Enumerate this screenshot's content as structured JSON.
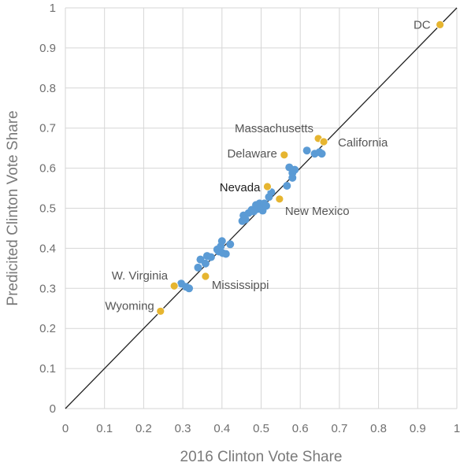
{
  "chart_data": {
    "type": "scatter",
    "xlabel": "2016 Clinton Vote Share",
    "ylabel": "Predicited Clinton Vote Share",
    "xlim": [
      0,
      1
    ],
    "ylim": [
      0,
      1
    ],
    "x_ticks": [
      "0",
      "0.1",
      "0.2",
      "0.3",
      "0.4",
      "0.5",
      "0.6",
      "0.7",
      "0.8",
      "0.9",
      "1"
    ],
    "y_ticks": [
      "0",
      "0.1",
      "0.2",
      "0.3",
      "0.4",
      "0.5",
      "0.6",
      "0.7",
      "0.8",
      "0.9",
      "1"
    ],
    "grid": true,
    "reference_line": {
      "from": [
        0,
        0
      ],
      "to": [
        1,
        1
      ]
    },
    "colors": {
      "states": "#5b9bd5",
      "highlighted": "#e6b530",
      "line": "#222222",
      "grid": "#d6d6d6"
    },
    "series": [
      {
        "points": [
          [
            0.296,
            0.312
          ],
          [
            0.308,
            0.304
          ],
          [
            0.316,
            0.3
          ],
          [
            0.339,
            0.352
          ],
          [
            0.345,
            0.372
          ],
          [
            0.358,
            0.362
          ],
          [
            0.362,
            0.381
          ],
          [
            0.372,
            0.378
          ],
          [
            0.388,
            0.397
          ],
          [
            0.392,
            0.392
          ],
          [
            0.397,
            0.405
          ],
          [
            0.4,
            0.418
          ],
          [
            0.402,
            0.388
          ],
          [
            0.41,
            0.386
          ],
          [
            0.421,
            0.41
          ],
          [
            0.452,
            0.468
          ],
          [
            0.455,
            0.482
          ],
          [
            0.46,
            0.472
          ],
          [
            0.468,
            0.488
          ],
          [
            0.476,
            0.496
          ],
          [
            0.481,
            0.492
          ],
          [
            0.487,
            0.508
          ],
          [
            0.491,
            0.498
          ],
          [
            0.496,
            0.512
          ],
          [
            0.5,
            0.502
          ],
          [
            0.504,
            0.494
          ],
          [
            0.508,
            0.512
          ],
          [
            0.513,
            0.506
          ],
          [
            0.52,
            0.528
          ],
          [
            0.526,
            0.54
          ],
          [
            0.566,
            0.556
          ],
          [
            0.572,
            0.602
          ],
          [
            0.58,
            0.588
          ],
          [
            0.586,
            0.596
          ],
          [
            0.58,
            0.576
          ],
          [
            0.617,
            0.644
          ],
          [
            0.637,
            0.636
          ],
          [
            0.649,
            0.64
          ],
          [
            0.655,
            0.636
          ]
        ]
      },
      {
        "points": [
          [
            0.957,
            0.958
          ],
          [
            0.646,
            0.674
          ],
          [
            0.66,
            0.666
          ],
          [
            0.559,
            0.633
          ],
          [
            0.516,
            0.554
          ],
          [
            0.547,
            0.523
          ],
          [
            0.278,
            0.306
          ],
          [
            0.358,
            0.33
          ],
          [
            0.243,
            0.243
          ]
        ]
      }
    ],
    "annotations": [
      {
        "text": "DC",
        "x": 0.957,
        "y": 0.958,
        "anchor": "end",
        "dx": -12,
        "dy": 5,
        "dark": false
      },
      {
        "text": "Massachusetts",
        "x": 0.646,
        "y": 0.674,
        "anchor": "end",
        "dx": -6,
        "dy": -8,
        "dark": false
      },
      {
        "text": "California",
        "x": 0.66,
        "y": 0.666,
        "anchor": "start",
        "dx": 18,
        "dy": 6,
        "dark": false
      },
      {
        "text": "Delaware",
        "x": 0.559,
        "y": 0.633,
        "anchor": "end",
        "dx": -9,
        "dy": 3,
        "dark": false
      },
      {
        "text": "Nevada",
        "x": 0.516,
        "y": 0.554,
        "anchor": "end",
        "dx": -9,
        "dy": 6,
        "dark": true
      },
      {
        "text": "New Mexico",
        "x": 0.547,
        "y": 0.523,
        "anchor": "start",
        "dx": 7,
        "dy": 20,
        "dark": false
      },
      {
        "text": "W. Virginia",
        "x": 0.278,
        "y": 0.306,
        "anchor": "end",
        "dx": -8,
        "dy": -8,
        "dark": false
      },
      {
        "text": "Mississippi",
        "x": 0.358,
        "y": 0.33,
        "anchor": "start",
        "dx": 8,
        "dy": 16,
        "dark": false
      },
      {
        "text": "Wyoming",
        "x": 0.243,
        "y": 0.243,
        "anchor": "end",
        "dx": -8,
        "dy": -2,
        "dark": false
      }
    ]
  }
}
